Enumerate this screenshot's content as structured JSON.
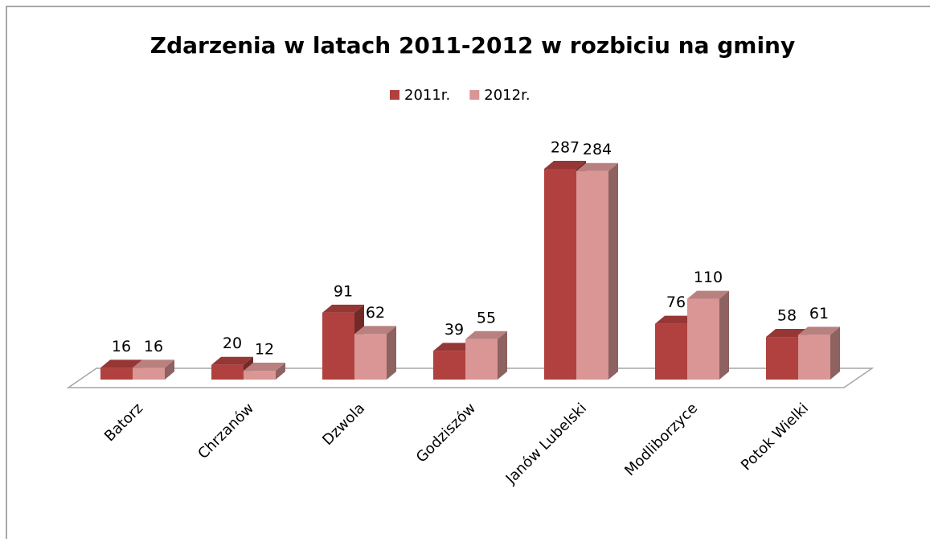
{
  "chart_data": {
    "type": "bar3d",
    "title": "Zdarzenia w latach 2011-2012 w rozbiciu na gminy",
    "categories": [
      "Batorz",
      "Chrzanów",
      "Dzwola",
      "Godziszów",
      "Janów Lubelski",
      "Modliborzyce",
      "Potok Wielki"
    ],
    "series": [
      {
        "name": "2011r.",
        "color": "#b0413e",
        "values": [
          16,
          20,
          91,
          39,
          287,
          76,
          58
        ]
      },
      {
        "name": "2012r.",
        "color": "#d99694",
        "values": [
          16,
          12,
          62,
          55,
          284,
          110,
          61
        ]
      }
    ],
    "legend": "top"
  }
}
